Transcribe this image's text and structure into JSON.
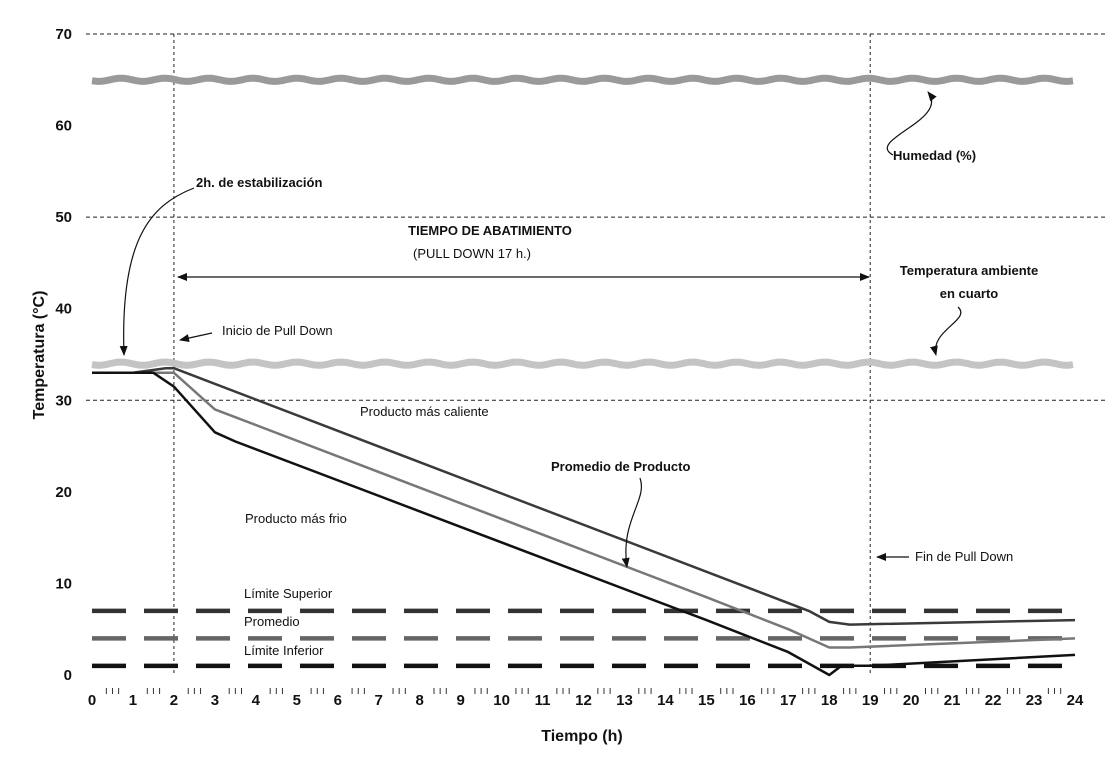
{
  "chart_data": {
    "type": "line",
    "xlabel": "Tiempo  (h)",
    "ylabel": "Temperatura (°C)",
    "xlim": [
      0,
      24
    ],
    "ylim": [
      0,
      70
    ],
    "x_ticks": [
      "0",
      "1",
      "2",
      "3",
      "4",
      "5",
      "6",
      "7",
      "8",
      "9",
      "10",
      "11",
      "12",
      "13",
      "14",
      "15",
      "16",
      "17",
      "18",
      "19",
      "20",
      "21",
      "22",
      "23",
      "24"
    ],
    "y_ticks": [
      "0",
      "10",
      "20",
      "30",
      "40",
      "50",
      "60",
      "70"
    ],
    "grid": "dashed horizontal at y = 30, 50, 70",
    "markers": {
      "start_pull_down_h": 2,
      "end_pull_down_h": 19
    },
    "series": [
      {
        "key": "humedad",
        "color": "#9a9a9a",
        "x": [
          0,
          24
        ],
        "y": [
          65,
          65
        ]
      },
      {
        "key": "ambiente",
        "color": "#c4c4c4",
        "x": [
          0,
          24
        ],
        "y": [
          34,
          34
        ]
      },
      {
        "key": "caliente",
        "color": "#3a3a3a",
        "x": [
          0,
          1,
          1.8,
          2,
          17.5,
          18,
          18.5,
          24
        ],
        "y": [
          33,
          33,
          33.5,
          33.5,
          7,
          5.8,
          5.5,
          6
        ]
      },
      {
        "key": "promedio",
        "color": "#777777",
        "x": [
          0,
          1.6,
          2,
          3,
          15,
          17,
          18,
          18.5,
          24
        ],
        "y": [
          33,
          33,
          33,
          29,
          8.5,
          5,
          3,
          3,
          4
        ]
      },
      {
        "key": "frio",
        "color": "#111111",
        "x": [
          0,
          1.5,
          2,
          2.3,
          3,
          3.5,
          15,
          17,
          18,
          18.3,
          19,
          24
        ],
        "y": [
          33,
          33,
          31.5,
          30,
          26.5,
          25.5,
          6,
          2.5,
          0,
          1,
          1,
          2.2
        ]
      }
    ],
    "limits": [
      {
        "key": "superior",
        "y": 7,
        "color": "#333333"
      },
      {
        "key": "promedio",
        "y": 4,
        "color": "#666666"
      },
      {
        "key": "inferior",
        "y": 1,
        "color": "#111111"
      }
    ],
    "annotations": {
      "estabilizacion": "2h. de estabilización",
      "tiempo_title": "TIEMPO DE ABATIMIENTO",
      "tiempo_sub": "(PULL  DOWN 17 h.)",
      "inicio": "Inicio de Pull Down",
      "fin": "Fin de Pull Down",
      "humedad": "Humedad (%)",
      "ambiente_1": "Temperatura ambiente",
      "ambiente_2": "en cuarto",
      "caliente": "Producto más caliente",
      "promedio": "Promedio de Producto",
      "frio": "Producto más frio",
      "lim_sup": "Límite Superior",
      "lim_prom": "Promedio",
      "lim_inf": "Límite Inferior"
    }
  }
}
